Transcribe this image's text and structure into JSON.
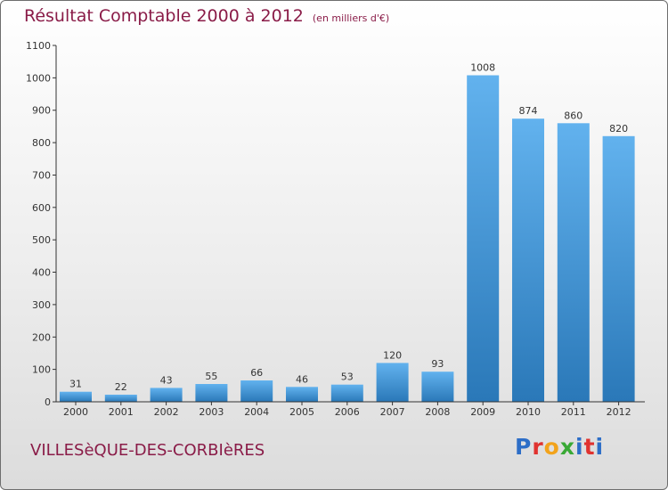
{
  "title": "Résultat Comptable 2000 à 2012",
  "unit_note": "(en milliers d'€)",
  "commune": "VILLESèQUE-DES-CORBIèRES",
  "logo": {
    "text": "Proxiti",
    "letter_colors": [
      "#2d6ec7",
      "#e0322f",
      "#f2a31b",
      "#39a935",
      "#2d6ec7",
      "#e0322f",
      "#2d6ec7"
    ]
  },
  "colors": {
    "bar_top": "#62b2ee",
    "bar_bottom": "#2a78b8",
    "title": "#8a1c48",
    "axis": "#333333"
  },
  "chart_data": {
    "type": "bar",
    "title": "Résultat Comptable 2000 à 2012",
    "categories": [
      "2000",
      "2001",
      "2002",
      "2003",
      "2004",
      "2005",
      "2006",
      "2007",
      "2008",
      "2009",
      "2010",
      "2011",
      "2012"
    ],
    "values": [
      31,
      22,
      43,
      55,
      66,
      46,
      53,
      120,
      93,
      1008,
      874,
      860,
      820
    ],
    "data_labels": [
      "31",
      "22",
      "43",
      "55",
      "66",
      "46",
      "53",
      "120",
      "93",
      "1008",
      "874",
      "860",
      "820"
    ],
    "yticks": [
      0,
      100,
      200,
      300,
      400,
      500,
      600,
      700,
      800,
      900,
      1000,
      1100
    ],
    "ylim": [
      0,
      1100
    ],
    "grid": false,
    "legend": "none"
  }
}
